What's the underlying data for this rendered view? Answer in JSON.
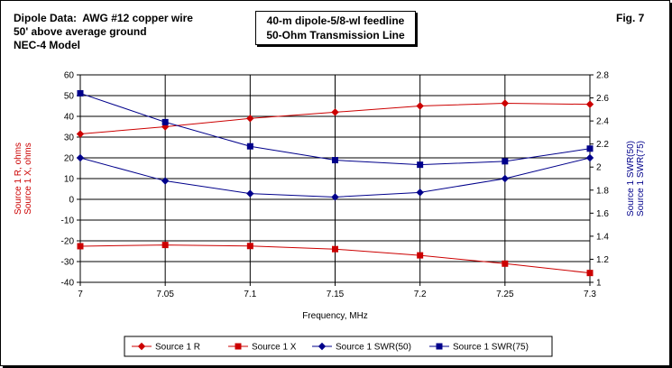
{
  "header": {
    "left_lines": [
      "Dipole Data:  AWG #12 copper wire",
      "50' above average ground",
      "NEC-4 Model"
    ],
    "figure_label": "Fig. 7"
  },
  "chart_data": {
    "type": "line",
    "title": [
      "40-m dipole-5/8-wl feedline",
      "50-Ohm Transmission Line"
    ],
    "xlabel": "Frequency, MHz",
    "ylabel_left": [
      "Source 1 R,  ohms",
      "Source 1 X,  ohms"
    ],
    "ylabel_right": [
      "Source 1 SWR(50)",
      "Source 1 SWR(75)"
    ],
    "x": [
      7,
      7.05,
      7.1,
      7.15,
      7.2,
      7.25,
      7.3
    ],
    "x_ticks": [
      "7",
      "7.05",
      "7.1",
      "7.15",
      "7.2",
      "7.25",
      "7.3"
    ],
    "xlim": [
      7,
      7.3
    ],
    "ylim_left": [
      -40,
      60
    ],
    "y_ticks_left": [
      "60",
      "50",
      "40",
      "30",
      "20",
      "10",
      "0",
      "-10",
      "-20",
      "-30",
      "-40"
    ],
    "ylim_right": [
      1,
      2.8
    ],
    "y_ticks_right": [
      "2.8",
      "2.6",
      "2.4",
      "2.2",
      "2",
      "1.8",
      "1.6",
      "1.4",
      "1.2",
      "1"
    ],
    "grid": true,
    "legend_position": "bottom",
    "series": [
      {
        "name": "Source 1 R",
        "axis": "left",
        "marker": "diamond",
        "color": "#cc0000",
        "values": [
          31.5,
          35,
          39,
          42,
          45,
          46.3,
          45.8
        ]
      },
      {
        "name": "Source 1 X",
        "axis": "left",
        "marker": "square",
        "color": "#cc0000",
        "values": [
          -22.6,
          -22,
          -22.5,
          -24,
          -27,
          -31,
          -35.5
        ]
      },
      {
        "name": "Source 1 SWR(50)",
        "axis": "right",
        "marker": "diamond",
        "color": "#00008b",
        "values": [
          2.08,
          1.88,
          1.77,
          1.74,
          1.78,
          1.9,
          2.08
        ]
      },
      {
        "name": "Source 1 SWR(75)",
        "axis": "right",
        "marker": "square",
        "color": "#00008b",
        "values": [
          2.64,
          2.39,
          2.18,
          2.06,
          2.02,
          2.05,
          2.16
        ]
      }
    ]
  }
}
